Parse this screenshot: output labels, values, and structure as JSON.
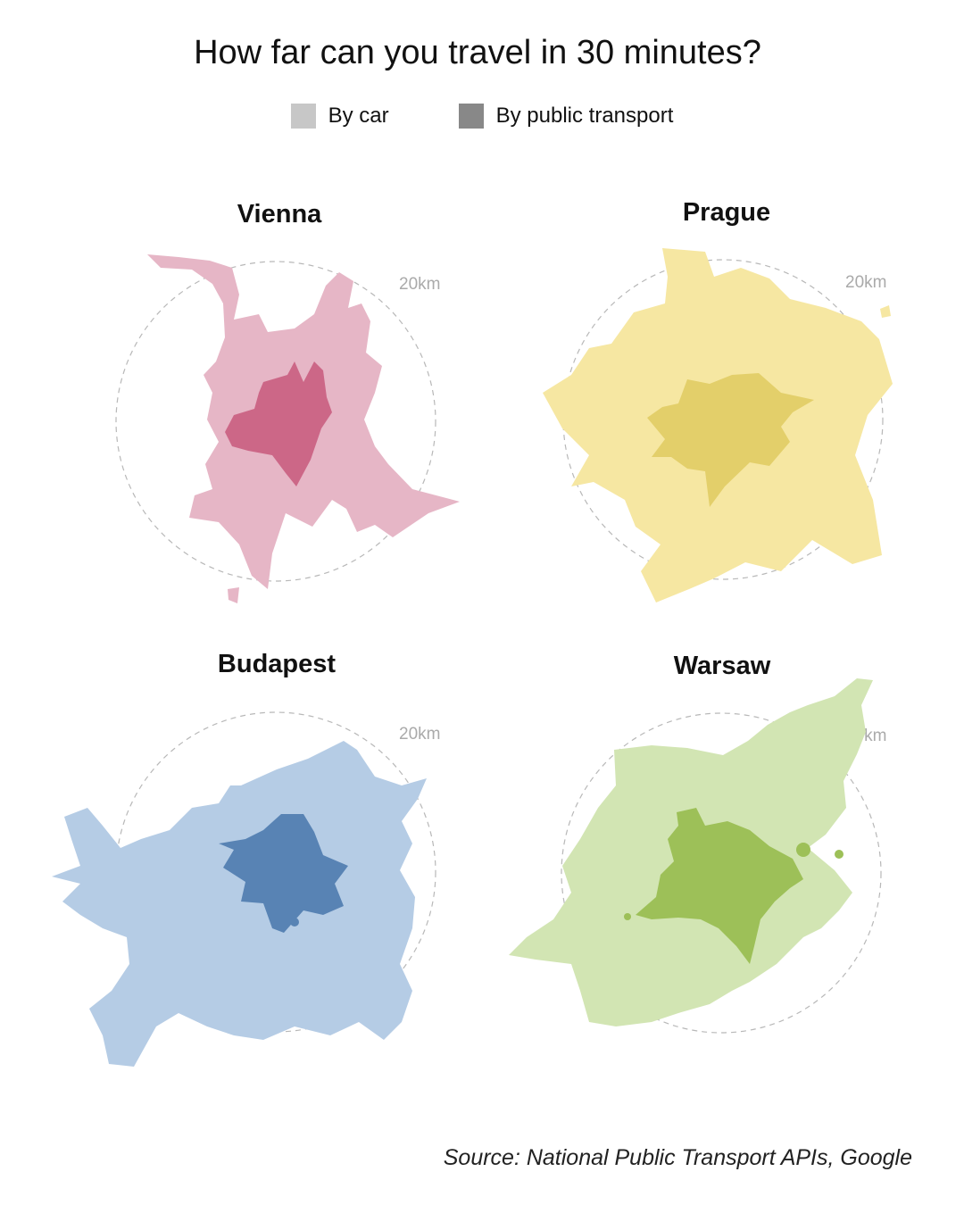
{
  "title": "How far can you travel in 30 minutes?",
  "legend": {
    "items": [
      {
        "label": "By car",
        "color": "#c7c7c7"
      },
      {
        "label": "By public transport",
        "color": "#888888"
      }
    ]
  },
  "cities": [
    {
      "name": "Vienna",
      "radius_label": "20km",
      "car_color": "#e6b6c6",
      "transit_color": "#cc6787"
    },
    {
      "name": "Prague",
      "radius_label": "20km",
      "car_color": "#f6e7a2",
      "transit_color": "#e3cf6a"
    },
    {
      "name": "Budapest",
      "radius_label": "20km",
      "car_color": "#b5cce5",
      "transit_color": "#5883b4"
    },
    {
      "name": "Warsaw",
      "radius_label": "20km",
      "car_color": "#d2e5b3",
      "transit_color": "#9dc058"
    }
  ],
  "source": "Source: National Public Transport APIs, Google"
}
